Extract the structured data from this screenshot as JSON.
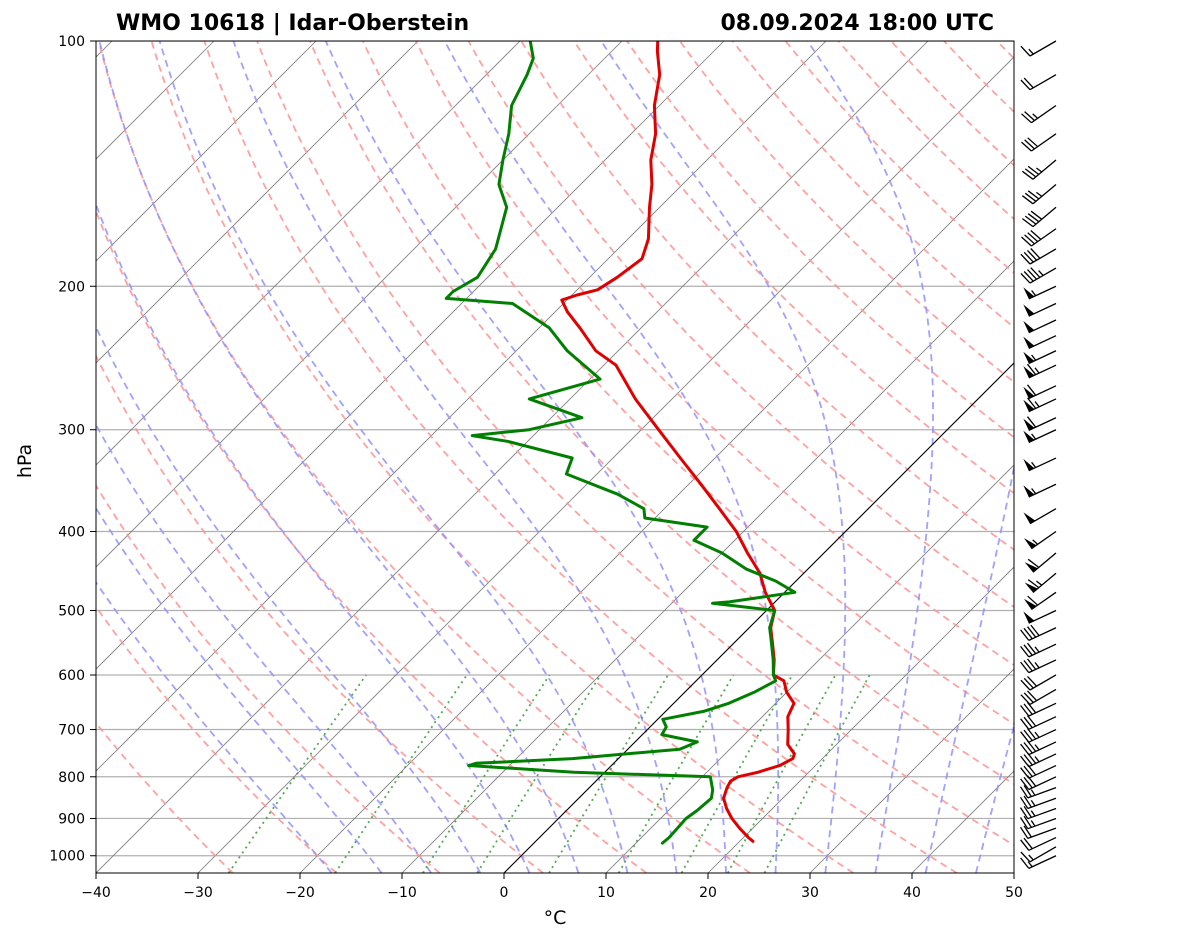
{
  "chart_data": {
    "type": "line",
    "title_left": "WMO 10618 | Idar-Oberstein",
    "title_right": "08.09.2024 18:00 UTC",
    "xlabel": "°C",
    "ylabel": "hPa",
    "xlim": [
      -40,
      50
    ],
    "ylim": [
      1050,
      100
    ],
    "x_ticks": [
      -40,
      -30,
      -20,
      -10,
      0,
      10,
      20,
      30,
      40,
      50
    ],
    "x_tick_labels": [
      "−40",
      "−30",
      "−20",
      "−10",
      "0",
      "10",
      "20",
      "30",
      "40",
      "50"
    ],
    "y_ticks": [
      100,
      200,
      300,
      400,
      500,
      600,
      700,
      800,
      900,
      1000
    ],
    "y_tick_labels": [
      "100",
      "200",
      "300",
      "400",
      "500",
      "600",
      "700",
      "800",
      "900",
      "1000"
    ],
    "skew_deg": 45,
    "colors": {
      "temperature": "#e00000",
      "dewpoint": "#007f00",
      "dry_adiabat": "#ff9090",
      "moist_adiabat": "#9090ff",
      "mixing_ratio": "#40a040",
      "isotherm": "#7a7a7a",
      "isobar": "#b0b0b0",
      "reference": "#000000"
    },
    "reference_isotherm_c": 0,
    "series": [
      {
        "name": "Temperature",
        "points": [
          [
            960,
            21.3
          ],
          [
            950,
            20.5
          ],
          [
            925,
            18.7
          ],
          [
            900,
            17.0
          ],
          [
            875,
            15.5
          ],
          [
            850,
            14.2
          ],
          [
            825,
            13.5
          ],
          [
            810,
            13.2
          ],
          [
            800,
            13.5
          ],
          [
            790,
            15.0
          ],
          [
            775,
            16.5
          ],
          [
            760,
            17.1
          ],
          [
            750,
            16.8
          ],
          [
            730,
            15.2
          ],
          [
            700,
            13.8
          ],
          [
            675,
            12.5
          ],
          [
            650,
            11.8
          ],
          [
            630,
            10.0
          ],
          [
            610,
            8.6
          ],
          [
            600,
            7.0
          ],
          [
            575,
            5.6
          ],
          [
            550,
            3.9
          ],
          [
            525,
            2.1
          ],
          [
            500,
            0.8
          ],
          [
            475,
            -1.9
          ],
          [
            450,
            -4.3
          ],
          [
            425,
            -7.5
          ],
          [
            400,
            -10.7
          ],
          [
            375,
            -14.6
          ],
          [
            350,
            -18.8
          ],
          [
            325,
            -23.4
          ],
          [
            300,
            -28.3
          ],
          [
            275,
            -33.6
          ],
          [
            250,
            -38.8
          ],
          [
            240,
            -42.2
          ],
          [
            225,
            -46.0
          ],
          [
            215,
            -48.8
          ],
          [
            208,
            -50.5
          ],
          [
            205,
            -49.5
          ],
          [
            202,
            -48.0
          ],
          [
            195,
            -47.3
          ],
          [
            185,
            -46.7
          ],
          [
            175,
            -48.0
          ],
          [
            160,
            -51.0
          ],
          [
            150,
            -53.0
          ],
          [
            140,
            -55.5
          ],
          [
            130,
            -57.6
          ],
          [
            120,
            -60.5
          ],
          [
            110,
            -63.0
          ],
          [
            103,
            -65.5
          ],
          [
            100,
            -66.5
          ]
        ]
      },
      {
        "name": "Dewpoint",
        "points": [
          [
            965,
            12.6
          ],
          [
            950,
            12.7
          ],
          [
            925,
            12.6
          ],
          [
            900,
            12.5
          ],
          [
            880,
            12.8
          ],
          [
            850,
            13.0
          ],
          [
            830,
            12.3
          ],
          [
            810,
            11.3
          ],
          [
            800,
            10.8
          ],
          [
            790,
            -3.0
          ],
          [
            775,
            -14.0
          ],
          [
            770,
            -13.5
          ],
          [
            760,
            -4.5
          ],
          [
            740,
            5.1
          ],
          [
            725,
            6.1
          ],
          [
            710,
            1.9
          ],
          [
            695,
            1.6
          ],
          [
            680,
            0.5
          ],
          [
            665,
            3.7
          ],
          [
            650,
            5.4
          ],
          [
            630,
            6.8
          ],
          [
            610,
            7.8
          ],
          [
            600,
            7.0
          ],
          [
            575,
            5.5
          ],
          [
            550,
            3.8
          ],
          [
            525,
            2.0
          ],
          [
            500,
            0.8
          ],
          [
            490,
            -6.0
          ],
          [
            488,
            -4.5
          ],
          [
            475,
            1.0
          ],
          [
            460,
            -2.0
          ],
          [
            445,
            -6.0
          ],
          [
            425,
            -10.0
          ],
          [
            410,
            -14.0
          ],
          [
            395,
            -14.0
          ],
          [
            385,
            -21.0
          ],
          [
            375,
            -22.0
          ],
          [
            360,
            -26.0
          ],
          [
            340,
            -33.0
          ],
          [
            325,
            -34.0
          ],
          [
            310,
            -42.0
          ],
          [
            305,
            -46.0
          ],
          [
            300,
            -41.0
          ],
          [
            290,
            -37.0
          ],
          [
            275,
            -44.0
          ],
          [
            260,
            -39.0
          ],
          [
            240,
            -45.0
          ],
          [
            225,
            -49.0
          ],
          [
            210,
            -55.0
          ],
          [
            207,
            -62.0
          ],
          [
            203,
            -62.0
          ],
          [
            195,
            -61.0
          ],
          [
            180,
            -62.0
          ],
          [
            160,
            -65.0
          ],
          [
            150,
            -68.0
          ],
          [
            140,
            -70.0
          ],
          [
            130,
            -72.0
          ],
          [
            120,
            -74.5
          ],
          [
            110,
            -76.0
          ],
          [
            105,
            -77.0
          ],
          [
            100,
            -79.0
          ]
        ]
      }
    ],
    "dry_adiabat_thetas_c": [
      -30,
      -20,
      -10,
      0,
      10,
      20,
      30,
      40,
      50,
      60,
      70,
      80,
      90,
      100,
      110,
      120,
      130,
      140,
      150,
      160,
      170,
      180,
      190,
      200
    ],
    "moist_adiabat_starts_c": [
      -20,
      -15,
      -10,
      -5,
      0,
      5,
      10,
      15,
      20,
      25,
      30,
      35,
      40,
      45
    ],
    "mixing_ratios_gkg": [
      0.4,
      1,
      2,
      3,
      5,
      8,
      12,
      16,
      20
    ],
    "wind_barbs": [
      [
        1000,
        245,
        15
      ],
      [
        975,
        240,
        15
      ],
      [
        950,
        245,
        20
      ],
      [
        925,
        250,
        20
      ],
      [
        900,
        250,
        25
      ],
      [
        875,
        250,
        25
      ],
      [
        850,
        250,
        25
      ],
      [
        825,
        250,
        25
      ],
      [
        800,
        245,
        30
      ],
      [
        775,
        245,
        30
      ],
      [
        750,
        245,
        35
      ],
      [
        725,
        245,
        35
      ],
      [
        700,
        245,
        35
      ],
      [
        675,
        245,
        30
      ],
      [
        650,
        245,
        30
      ],
      [
        625,
        240,
        30
      ],
      [
        600,
        240,
        30
      ],
      [
        575,
        245,
        35
      ],
      [
        550,
        245,
        35
      ],
      [
        525,
        245,
        40
      ],
      [
        500,
        245,
        50
      ],
      [
        475,
        235,
        60
      ],
      [
        450,
        230,
        65
      ],
      [
        425,
        230,
        60
      ],
      [
        400,
        235,
        55
      ],
      [
        375,
        240,
        50
      ],
      [
        350,
        245,
        55
      ],
      [
        325,
        245,
        55
      ],
      [
        300,
        245,
        55
      ],
      [
        290,
        245,
        60
      ],
      [
        275,
        245,
        65
      ],
      [
        265,
        245,
        60
      ],
      [
        250,
        245,
        65
      ],
      [
        240,
        245,
        55
      ],
      [
        230,
        245,
        50
      ],
      [
        220,
        245,
        50
      ],
      [
        210,
        245,
        50
      ],
      [
        200,
        245,
        55
      ],
      [
        190,
        240,
        45
      ],
      [
        180,
        240,
        40
      ],
      [
        170,
        235,
        40
      ],
      [
        160,
        230,
        40
      ],
      [
        150,
        230,
        35
      ],
      [
        140,
        230,
        35
      ],
      [
        130,
        235,
        30
      ],
      [
        120,
        235,
        25
      ],
      [
        110,
        240,
        20
      ],
      [
        100,
        240,
        15
      ]
    ]
  }
}
